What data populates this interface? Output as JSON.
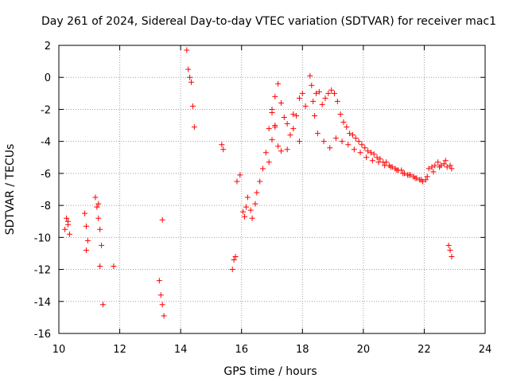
{
  "chart_data": {
    "type": "scatter",
    "title": "Day 261 of 2024, Sidereal Day-to-day VTEC variation (SDTVAR) for receiver mac1",
    "xlabel": "GPS time / hours",
    "ylabel": "SDTVAR / TECUs",
    "xlim": [
      10,
      24
    ],
    "ylim": [
      -16,
      2
    ],
    "xticks": [
      10,
      12,
      14,
      16,
      18,
      20,
      22,
      24
    ],
    "yticks": [
      2,
      0,
      -2,
      -4,
      -6,
      -8,
      -10,
      -12,
      -14,
      -16
    ],
    "grid": true,
    "marker": "+",
    "color": "#ff0000",
    "series": [
      {
        "name": "SDTVAR",
        "x": [
          10.2,
          10.25,
          10.3,
          10.35,
          10.3,
          10.85,
          10.9,
          10.95,
          10.9,
          11.2,
          11.25,
          11.3,
          11.3,
          11.35,
          11.4,
          11.35,
          11.45,
          11.8,
          13.3,
          13.35,
          13.4,
          13.45,
          13.4,
          14.2,
          14.25,
          14.3,
          14.35,
          14.4,
          14.45,
          15.35,
          15.4,
          15.7,
          15.75,
          15.8,
          15.85,
          15.95,
          16.05,
          16.1,
          16.15,
          16.2,
          16.3,
          16.35,
          16.45,
          16.5,
          16.6,
          16.7,
          16.8,
          16.9,
          17.0,
          17.1,
          17.2,
          17.3,
          17.4,
          17.5,
          17.6,
          17.7,
          17.8,
          17.9,
          18.0,
          18.1,
          18.25,
          18.3,
          18.35,
          18.45,
          18.55,
          18.65,
          18.75,
          18.85,
          18.95,
          19.05,
          19.15,
          19.25,
          19.35,
          19.45,
          19.55,
          19.65,
          19.75,
          19.85,
          19.95,
          20.05,
          20.15,
          20.25,
          20.35,
          20.45,
          20.55,
          20.65,
          20.75,
          20.85,
          20.95,
          21.05,
          21.15,
          21.25,
          21.35,
          21.45,
          21.55,
          21.65,
          21.75,
          21.85,
          21.95,
          22.05,
          22.15,
          22.25,
          22.35,
          22.45,
          22.55,
          22.65,
          22.75,
          22.85,
          22.9,
          22.8,
          22.85,
          22.9,
          18.4,
          18.5,
          18.7,
          18.9,
          19.1,
          19.3,
          19.5,
          19.7,
          19.9,
          20.1,
          20.3,
          20.5,
          20.7,
          20.9,
          21.1,
          21.3,
          21.5,
          21.7,
          21.9,
          22.1,
          22.3,
          22.5,
          22.7,
          17.0,
          17.1,
          17.2,
          17.3,
          17.5,
          17.7,
          17.9,
          16.9,
          17.0,
          17.1
        ],
        "y": [
          -9.5,
          -8.8,
          -9.2,
          -9.8,
          -9.0,
          -8.5,
          -9.3,
          -10.2,
          -10.8,
          -7.5,
          -8.1,
          -8.8,
          -7.9,
          -9.5,
          -10.5,
          -11.8,
          -14.2,
          -11.8,
          -12.7,
          -13.6,
          -14.2,
          -14.9,
          -8.9,
          1.7,
          0.5,
          0.0,
          -0.3,
          -1.8,
          -3.1,
          -4.2,
          -4.5,
          -12.0,
          -11.4,
          -11.2,
          -6.5,
          -6.1,
          -8.4,
          -8.7,
          -8.1,
          -7.5,
          -8.3,
          -8.8,
          -7.9,
          -7.2,
          -6.5,
          -5.7,
          -4.7,
          -3.2,
          -2.0,
          -1.2,
          -0.4,
          -1.6,
          -2.5,
          -2.9,
          -3.6,
          -2.3,
          -2.4,
          -1.3,
          -1.0,
          -1.8,
          0.1,
          -0.5,
          -1.5,
          -1.0,
          -0.9,
          -1.7,
          -1.3,
          -1.0,
          -0.8,
          -1.0,
          -1.5,
          -2.3,
          -2.8,
          -3.1,
          -3.5,
          -3.6,
          -3.8,
          -4.0,
          -4.2,
          -4.4,
          -4.6,
          -4.7,
          -4.8,
          -5.0,
          -5.1,
          -5.3,
          -5.3,
          -5.5,
          -5.6,
          -5.7,
          -5.8,
          -5.8,
          -6.0,
          -6.1,
          -6.1,
          -6.2,
          -6.3,
          -6.4,
          -6.5,
          -6.4,
          -5.7,
          -5.6,
          -5.5,
          -5.3,
          -5.5,
          -5.4,
          -5.6,
          -5.5,
          -5.7,
          -10.5,
          -10.8,
          -11.2,
          -2.4,
          -3.5,
          -4.0,
          -4.4,
          -3.8,
          -4.0,
          -4.2,
          -4.5,
          -4.7,
          -5.0,
          -5.2,
          -5.3,
          -5.5,
          -5.6,
          -5.8,
          -6.0,
          -6.1,
          -6.3,
          -6.4,
          -6.2,
          -5.9,
          -5.6,
          -5.2,
          -2.2,
          -3.0,
          -4.3,
          -4.6,
          -4.5,
          -3.2,
          -4.0,
          -5.3,
          -3.9,
          -3.1
        ]
      }
    ]
  }
}
